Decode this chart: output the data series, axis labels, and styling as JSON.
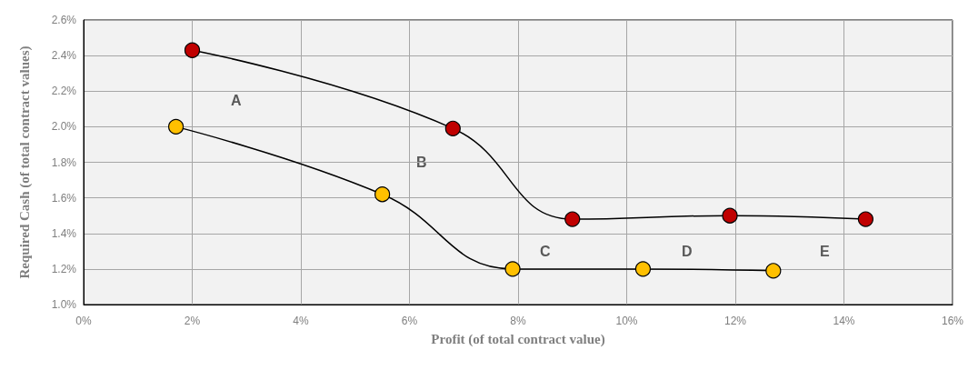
{
  "chart_data": {
    "type": "line",
    "xlabel": "Profit (of total contract value)",
    "ylabel": "Required Cash (of total contract values)",
    "xlim": [
      0,
      16
    ],
    "xticks": [
      {
        "value": 0,
        "label": "0%"
      },
      {
        "value": 2,
        "label": "2%"
      },
      {
        "value": 4,
        "label": "4%"
      },
      {
        "value": 6,
        "label": "6%"
      },
      {
        "value": 8,
        "label": "8%"
      },
      {
        "value": 10,
        "label": "10%"
      },
      {
        "value": 12,
        "label": "12%"
      },
      {
        "value": 14,
        "label": "14%"
      },
      {
        "value": 16,
        "label": "16%"
      }
    ],
    "ylim": [
      1.0,
      2.6
    ],
    "yticks": [
      {
        "value": 1.0,
        "label": "1.0%"
      },
      {
        "value": 1.2,
        "label": "1.2%"
      },
      {
        "value": 1.4,
        "label": "1.4%"
      },
      {
        "value": 1.6,
        "label": "1.6%"
      },
      {
        "value": 1.8,
        "label": "1.8%"
      },
      {
        "value": 2.0,
        "label": "2.0%"
      },
      {
        "value": 2.2,
        "label": "2.2%"
      },
      {
        "value": 2.4,
        "label": "2.4%"
      },
      {
        "value": 2.6,
        "label": "2.6%"
      }
    ],
    "grid": true,
    "marker": "circle",
    "line_style": "solid",
    "series": [
      {
        "color": "#c00000",
        "x": [
          2.0,
          6.8,
          9.0,
          11.9,
          14.4
        ],
        "values": [
          2.43,
          1.99,
          1.48,
          1.5,
          1.48
        ]
      },
      {
        "color": "#ffc000",
        "x": [
          1.7,
          5.5,
          7.9,
          10.3,
          12.7
        ],
        "values": [
          2.0,
          1.62,
          1.2,
          1.2,
          1.19
        ]
      }
    ],
    "annotations": [
      "A",
      "B",
      "C",
      "D",
      "E"
    ]
  }
}
